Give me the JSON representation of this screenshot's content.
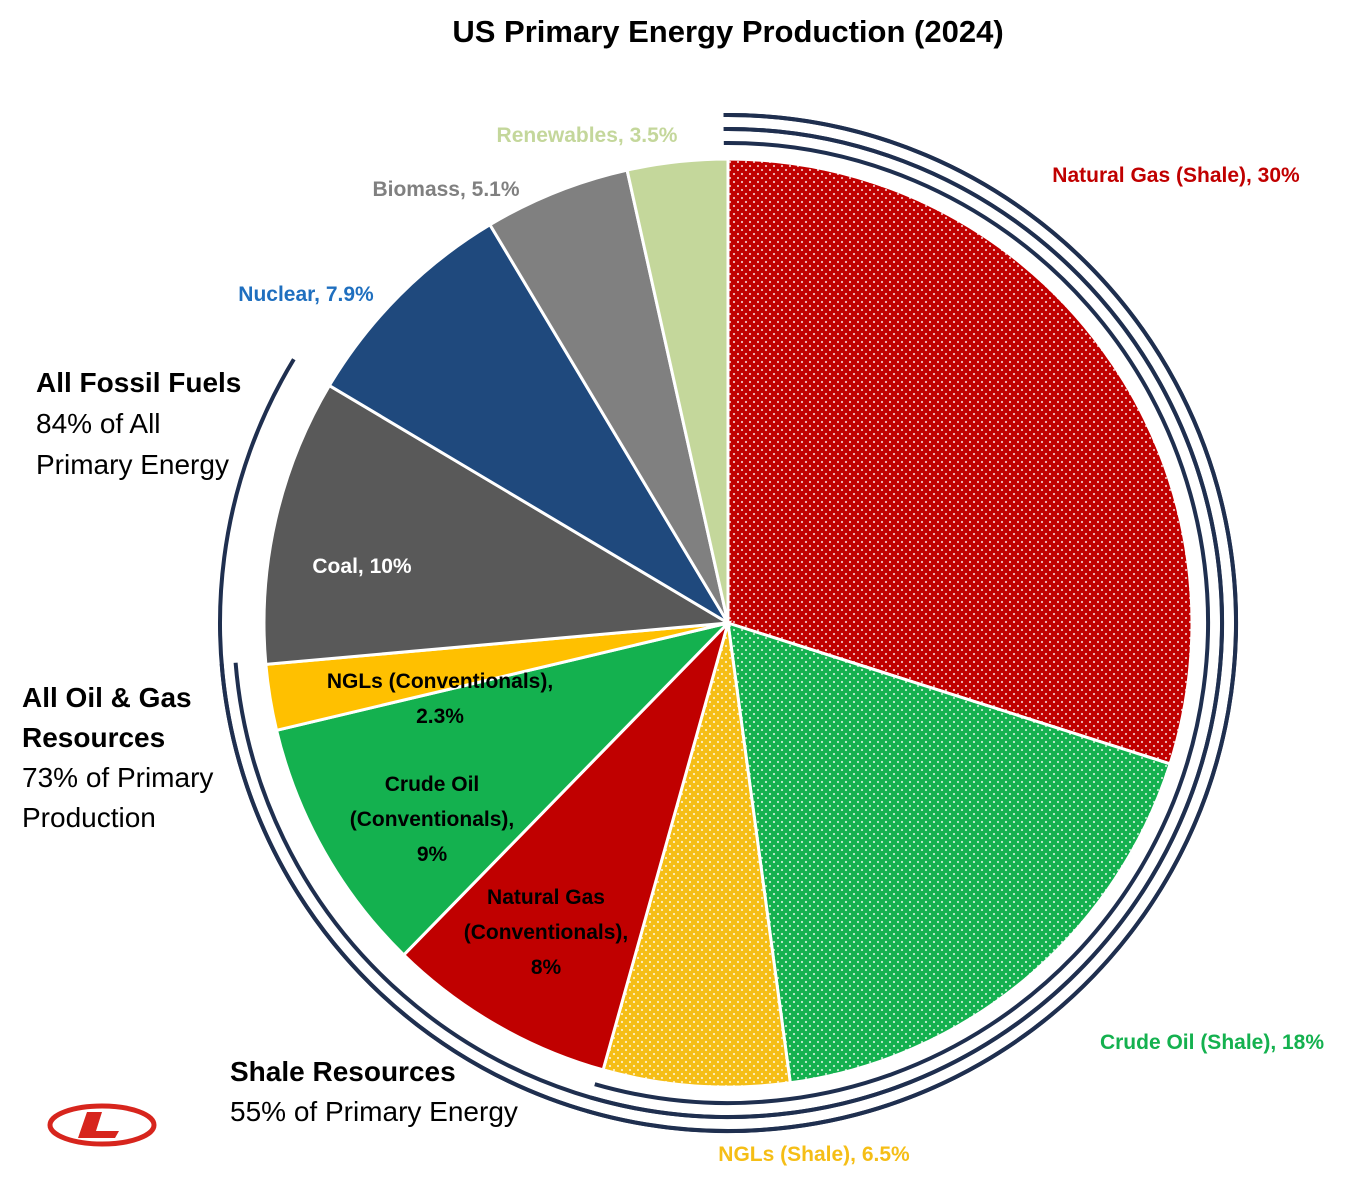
{
  "chart_data": {
    "type": "pie",
    "title": "US Primary Energy Production (2024)",
    "slices": [
      {
        "label": "Natural Gas (Shale)",
        "value": 30,
        "value_text": "30%",
        "color": "#c00000",
        "pattern": "dots",
        "label_color": "#c00000"
      },
      {
        "label": "Crude Oil (Shale)",
        "value": 18,
        "value_text": "18%",
        "color": "#14b14f",
        "pattern": "dots",
        "label_color": "#14b14f"
      },
      {
        "label": "NGLs (Shale)",
        "value": 6.5,
        "value_text": "6.5%",
        "color": "#f5be16",
        "pattern": "dots",
        "label_color": "#f5be16"
      },
      {
        "label": "Natural Gas (Conventionals)",
        "value": 8,
        "value_text": "8%",
        "color": "#c00000",
        "pattern": "solid",
        "label_color": "#000000"
      },
      {
        "label": "Crude Oil (Conventionals)",
        "value": 9,
        "value_text": "9%",
        "color": "#14b14f",
        "pattern": "solid",
        "label_color": "#000000"
      },
      {
        "label": "NGLs (Conventionals)",
        "value": 2.3,
        "value_text": "2.3%",
        "color": "#ffc000",
        "pattern": "solid",
        "label_color": "#000000"
      },
      {
        "label": "Coal",
        "value": 10,
        "value_text": "10%",
        "color": "#595959",
        "pattern": "solid",
        "label_color": "#ffffff"
      },
      {
        "label": "Nuclear",
        "value": 7.9,
        "value_text": "7.9%",
        "color": "#1f497d",
        "pattern": "solid",
        "label_color": "#1f6fbf"
      },
      {
        "label": "Biomass",
        "value": 5.1,
        "value_text": "5.1%",
        "color": "#808080",
        "pattern": "solid",
        "label_color": "#808080"
      },
      {
        "label": "Renewables",
        "value": 3.5,
        "value_text": "3.5%",
        "color": "#c4d79b",
        "pattern": "solid",
        "label_color": "#c4d79b"
      }
    ],
    "groupings": [
      {
        "name": "All Fossil Fuels",
        "lines": [
          "84% of All",
          "Primary Energy"
        ],
        "arc_count": 1
      },
      {
        "name": "All Oil & Gas Resources",
        "name_lines": [
          "All Oil & Gas",
          "Resources"
        ],
        "lines": [
          "73% of Primary",
          "Production"
        ],
        "arc_count": 2
      },
      {
        "name": "Shale Resources",
        "lines": [
          "55% of Primary Energy"
        ],
        "arc_count": 3
      }
    ],
    "arc_color": "#1f2f4f"
  },
  "logo": {
    "letter": "L",
    "color": "#d7251d"
  }
}
